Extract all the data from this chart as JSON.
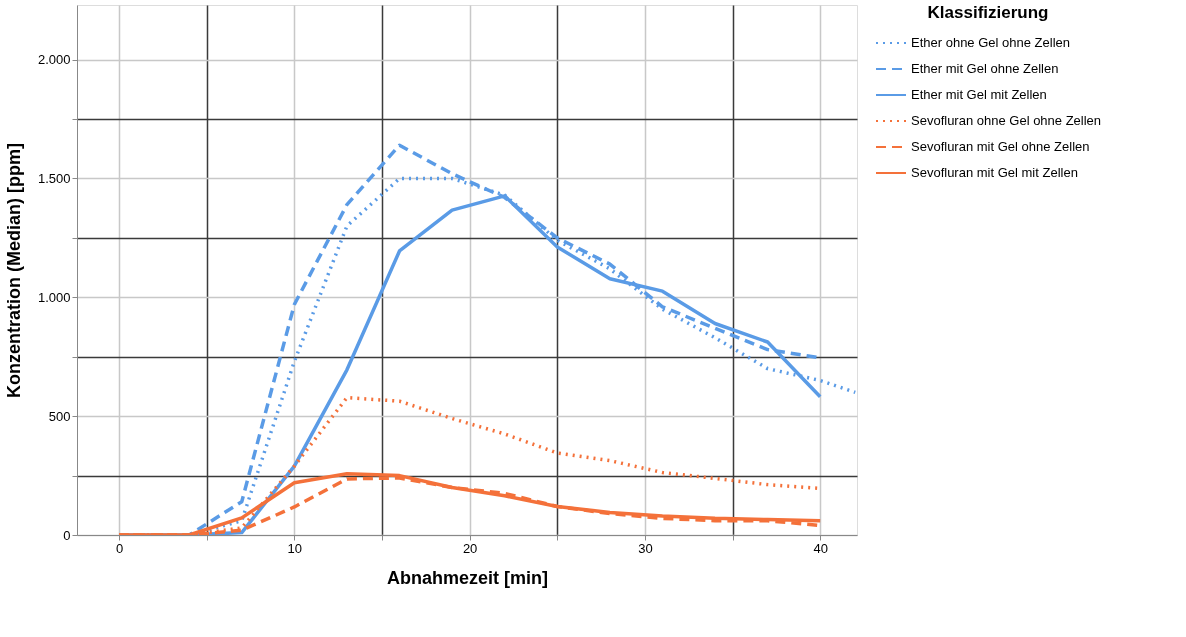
{
  "chart_data": {
    "type": "line",
    "xlabel": "Abnahmezeit [min]",
    "ylabel": "Konzentration (Median) [ppm]",
    "legend_title": "Klassifizierung",
    "legend": "top right",
    "grid": true,
    "xlim": [
      -2.4,
      42.1
    ],
    "ylim": [
      0,
      2230
    ],
    "xticks": [
      0,
      {
        "value": 5,
        "label": null
      },
      10,
      {
        "value": 15,
        "label": null
      },
      20,
      {
        "value": 25,
        "label": null
      },
      30,
      {
        "value": 35,
        "label": null
      },
      40
    ],
    "yticks": [
      0,
      {
        "value": 250,
        "label": null
      },
      500,
      {
        "value": 750,
        "label": null
      },
      {
        "value": 1000,
        "label": "1.000"
      },
      {
        "value": 1250,
        "label": null
      },
      {
        "value": 1500,
        "label": "1.500"
      },
      {
        "value": 1750,
        "label": null
      },
      {
        "value": 2000,
        "label": "2.000"
      }
    ],
    "series": [
      {
        "name": "Ether ohne Gel ohne Zellen",
        "color": "#5a9be6",
        "line_style": "dotted",
        "x": [
          0,
          4,
          7,
          10,
          13,
          16,
          19,
          22,
          25,
          28,
          31,
          34,
          37,
          40,
          42
        ],
        "values": [
          0,
          0,
          60,
          730,
          1300,
          1500,
          1500,
          1430,
          1240,
          1120,
          950,
          830,
          700,
          650,
          600
        ]
      },
      {
        "name": "Ether mit Gel ohne Zellen",
        "color": "#5a9be6",
        "line_style": "dashed",
        "x": [
          0,
          4,
          7,
          10,
          13,
          16,
          19,
          22,
          25,
          28,
          31,
          34,
          37,
          40
        ],
        "values": [
          0,
          0,
          140,
          970,
          1390,
          1640,
          1520,
          1420,
          1250,
          1140,
          960,
          870,
          780,
          745
        ]
      },
      {
        "name": "Ether mit Gel mit Zellen",
        "color": "#5a9be6",
        "line_style": "solid",
        "x": [
          0,
          4,
          7,
          10,
          13,
          16,
          19,
          22,
          25,
          28,
          31,
          34,
          37,
          40
        ],
        "values": [
          0,
          0,
          10,
          290,
          695,
          1195,
          1367,
          1427,
          1212,
          1078,
          1026,
          890,
          812,
          582
        ]
      },
      {
        "name": "Sevofluran ohne Gel ohne Zellen",
        "color": "#f4713a",
        "line_style": "dotted",
        "x": [
          0,
          4,
          7,
          10,
          13,
          16,
          19,
          22,
          25,
          28,
          31,
          34,
          37,
          40
        ],
        "values": [
          0,
          0,
          30,
          290,
          578,
          563,
          490,
          425,
          345,
          313,
          263,
          238,
          212,
          196
        ]
      },
      {
        "name": "Sevofluran mit Gel ohne Zellen",
        "color": "#f4713a",
        "line_style": "dashed",
        "x": [
          0,
          4,
          7,
          10,
          13,
          16,
          19,
          22,
          25,
          28,
          31,
          34,
          37,
          40
        ],
        "values": [
          0,
          0,
          20,
          118,
          236,
          240,
          200,
          175,
          120,
          90,
          70,
          60,
          60,
          40
        ]
      },
      {
        "name": "Sevofluran mit Gel mit Zellen",
        "color": "#f4713a",
        "line_style": "solid",
        "x": [
          0,
          4,
          7,
          10,
          13,
          16,
          19,
          22,
          25,
          28,
          31,
          34,
          37,
          40
        ],
        "values": [
          0,
          0,
          72,
          220,
          258,
          250,
          200,
          165,
          120,
          95,
          80,
          70,
          65,
          60
        ]
      }
    ]
  }
}
